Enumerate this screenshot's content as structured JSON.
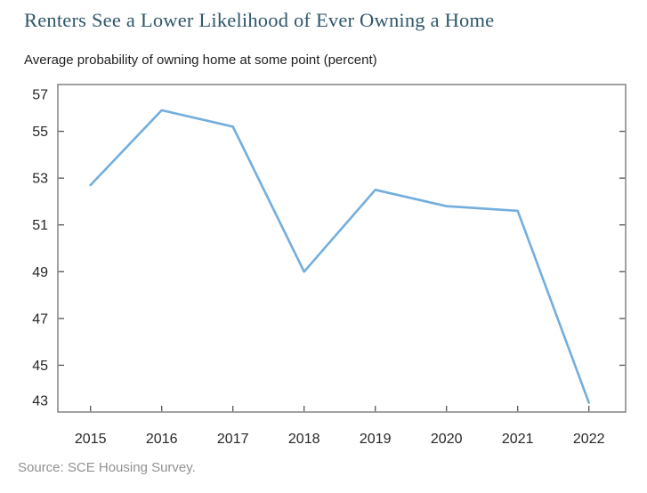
{
  "chart_data": {
    "type": "line",
    "title": "Renters See a Lower Likelihood of Ever Owning a Home",
    "subtitle": "Average probability of owning home at some point (percent)",
    "source": "Source: SCE Housing Survey.",
    "categories": [
      "2015",
      "2016",
      "2017",
      "2018",
      "2019",
      "2020",
      "2021",
      "2022"
    ],
    "series": [
      {
        "name": "Average probability of owning home at some point (percent)",
        "values": [
          52.7,
          55.9,
          55.2,
          49.0,
          52.5,
          51.8,
          51.6,
          43.4
        ]
      }
    ],
    "xlabel": "",
    "ylabel": "",
    "ylim": [
      43,
      57
    ],
    "yticks": [
      43,
      45,
      47,
      49,
      51,
      53,
      55,
      57
    ],
    "grid": false,
    "legend_position": "none",
    "tick_style": "inward, left-right-bottom borders"
  },
  "colors": {
    "background": "#ffffff",
    "title": "#30566a",
    "subtitle": "#1f1f1f",
    "line": "#72aedd",
    "plot_border": "#8a8a8a",
    "tick_mark": "#555555",
    "tick_label": "#262626",
    "source": "#919191"
  }
}
